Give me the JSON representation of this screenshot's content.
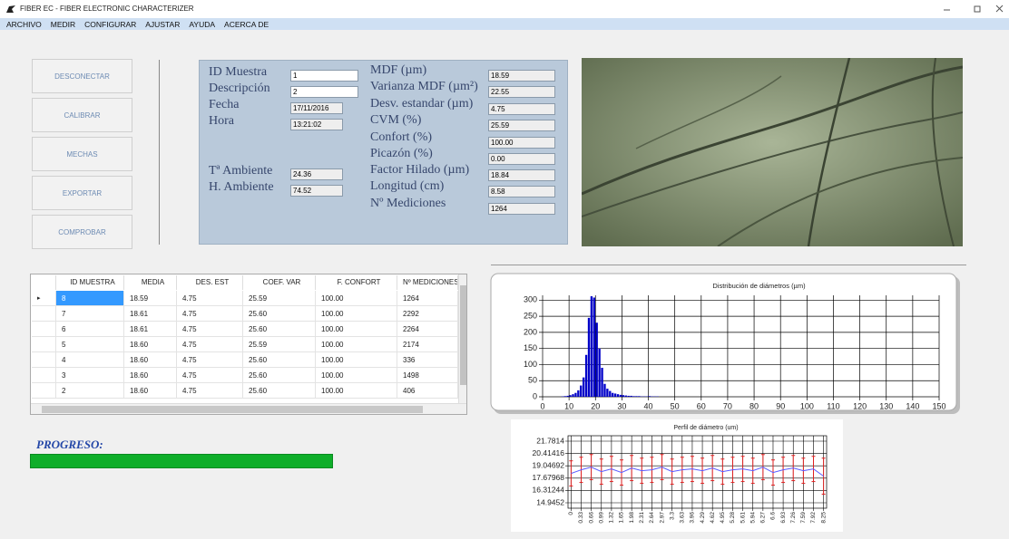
{
  "window": {
    "title": "FIBER EC - FIBER ELECTRONIC CHARACTERIZER"
  },
  "menu": [
    "ARCHIVO",
    "MEDIR",
    "CONFIGURAR",
    "AJUSTAR",
    "AYUDA",
    "ACERCA DE"
  ],
  "buttons": [
    "DESCONECTAR",
    "CALIBRAR",
    "MECHAS",
    "EXPORTAR",
    "COMPROBAR"
  ],
  "sample_fields": [
    {
      "label": "ID Muestra",
      "value": "1"
    },
    {
      "label": "Descripción",
      "value": "2"
    },
    {
      "label": "Fecha",
      "value": "17/11/2016"
    },
    {
      "label": "Hora",
      "value": "13:21:02"
    },
    {
      "label": "Tª Ambiente",
      "value": "24.36"
    },
    {
      "label": "H. Ambiente",
      "value": "74.52"
    }
  ],
  "results": [
    {
      "label": "MDF (µm)",
      "value": "18.59"
    },
    {
      "label": "Varianza MDF (µm²)",
      "value": "22.55"
    },
    {
      "label": "Desv. estandar (µm)",
      "value": "4.75"
    },
    {
      "label": "CVM (%)",
      "value": "25.59"
    },
    {
      "label": "Confort (%)",
      "value": "100.00"
    },
    {
      "label": "Picazón (%)",
      "value": "0.00"
    },
    {
      "label": "Factor Hilado (µm)",
      "value": "18.84"
    },
    {
      "label": "Longitud (cm)",
      "value": "8.58"
    },
    {
      "label": "Nº Mediciones",
      "value": "1264"
    }
  ],
  "table": {
    "columns": [
      "ID MUESTRA",
      "MEDIA",
      "DES. EST",
      "COEF. VAR",
      "F. CONFORT",
      "Nº MEDICIONES"
    ],
    "rows": [
      [
        "8",
        "18.59",
        "4.75",
        "25.59",
        "100.00",
        "1264"
      ],
      [
        "7",
        "18.61",
        "4.75",
        "25.60",
        "100.00",
        "2292"
      ],
      [
        "6",
        "18.61",
        "4.75",
        "25.60",
        "100.00",
        "2264"
      ],
      [
        "5",
        "18.60",
        "4.75",
        "25.59",
        "100.00",
        "2174"
      ],
      [
        "4",
        "18.60",
        "4.75",
        "25.60",
        "100.00",
        "336"
      ],
      [
        "3",
        "18.60",
        "4.75",
        "25.60",
        "100.00",
        "1498"
      ],
      [
        "2",
        "18.60",
        "4.75",
        "25.60",
        "100.00",
        "406"
      ]
    ]
  },
  "progress": {
    "label": "PROGRESO:"
  },
  "chart_data": [
    {
      "type": "histogram",
      "title": "Distribución de diámetros (µm)",
      "bins": [
        7,
        8,
        9,
        10,
        11,
        12,
        13,
        14,
        15,
        16,
        17,
        18,
        19,
        20,
        21,
        22,
        23,
        24,
        25,
        26,
        27,
        28,
        29,
        30,
        31,
        32,
        33,
        34,
        35,
        36,
        37,
        38,
        39,
        40,
        41,
        42,
        43,
        44
      ],
      "values": [
        1,
        2,
        3,
        5,
        8,
        12,
        20,
        35,
        60,
        130,
        245,
        312,
        308,
        230,
        150,
        90,
        40,
        25,
        18,
        12,
        10,
        8,
        6,
        5,
        4,
        3,
        3,
        2,
        2,
        2,
        1,
        1,
        1,
        2,
        1,
        1,
        1
      ],
      "color": "#0000c8",
      "xlim": [
        0,
        150
      ],
      "xticks": [
        0,
        10,
        20,
        30,
        40,
        50,
        60,
        70,
        80,
        90,
        100,
        110,
        120,
        130,
        140,
        150
      ],
      "ylim": [
        0,
        315
      ],
      "yticks": [
        0,
        50,
        100,
        150,
        200,
        250,
        300
      ],
      "grid": true
    },
    {
      "type": "line",
      "title": "Perfil de diámetro (um)",
      "x": [
        0,
        0.33,
        0.66,
        0.99,
        1.32,
        1.65,
        1.98,
        2.31,
        2.64,
        2.97,
        3.3,
        3.63,
        3.96,
        4.29,
        4.62,
        4.95,
        5.28,
        5.61,
        5.94,
        6.27,
        6.6,
        6.93,
        7.26,
        7.59,
        7.92,
        8.25
      ],
      "values": [
        18.2,
        18.6,
        18.9,
        18.4,
        18.7,
        18.3,
        18.8,
        18.5,
        18.6,
        18.9,
        18.4,
        18.6,
        18.7,
        18.5,
        18.8,
        18.4,
        18.6,
        18.7,
        18.5,
        18.9,
        18.3,
        18.6,
        18.8,
        18.5,
        18.7,
        17.9
      ],
      "errors": [
        1.4,
        1.4,
        1.4,
        1.4,
        1.4,
        1.4,
        1.4,
        1.4,
        1.4,
        1.4,
        1.4,
        1.4,
        1.4,
        1.4,
        1.4,
        1.4,
        1.4,
        1.4,
        1.4,
        1.4,
        1.4,
        1.4,
        1.4,
        1.4,
        1.4,
        2.0
      ],
      "color": "#5a5aff",
      "error_color": "#e02020",
      "xlim": [
        -0.1,
        8.35
      ],
      "xticks": [
        0,
        0.33,
        0.66,
        0.99,
        1.32,
        1.65,
        1.98,
        2.31,
        2.64,
        2.97,
        3.3,
        3.63,
        3.96,
        4.29,
        4.62,
        4.95,
        5.28,
        5.61,
        5.94,
        6.27,
        6.6,
        6.93,
        7.26,
        7.59,
        7.92,
        8.25
      ],
      "ylim": [
        14.9452,
        21.7814
      ],
      "yticks": [
        14.9452,
        16.31244,
        17.67968,
        19.04692,
        20.41416,
        21.7814
      ],
      "grid": true
    }
  ]
}
